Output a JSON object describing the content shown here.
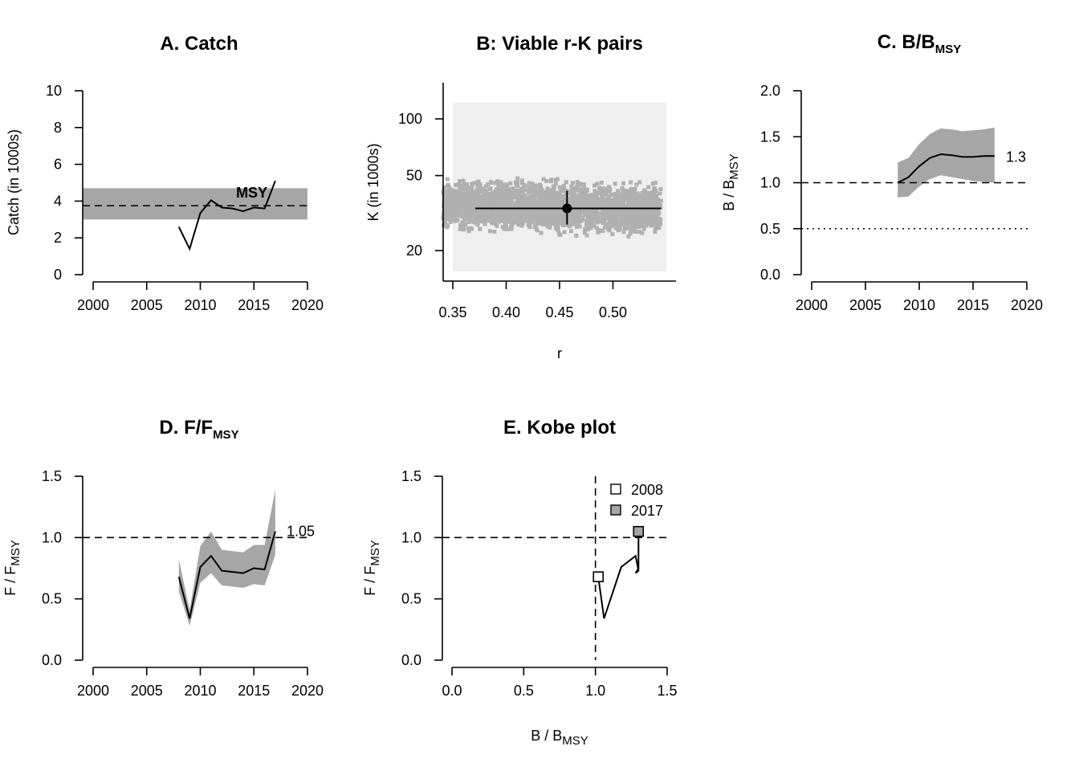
{
  "colors": {
    "band": "#a6a6a6",
    "cloud": "#b0b0b0",
    "panel_bg": "#efefef",
    "line": "#000000",
    "marker_2017": "#a6a6a6",
    "marker_2008": "#ffffff"
  },
  "chart_data": [
    {
      "id": "A",
      "type": "line",
      "title": "A. Catch",
      "xlabel": "",
      "ylabel": "Catch (in 1000s)",
      "xlim": [
        2000,
        2020
      ],
      "ylim": [
        0,
        10
      ],
      "xticks": [
        "2000",
        "2005",
        "2010",
        "2015",
        "2020"
      ],
      "yticks": [
        "0",
        "2",
        "4",
        "6",
        "8",
        "10"
      ],
      "msy": {
        "label": "MSY",
        "value": 3.75,
        "lower": 3.0,
        "upper": 4.7
      },
      "x": [
        2008,
        2009,
        2010,
        2011,
        2012,
        2013,
        2014,
        2015,
        2016,
        2017
      ],
      "y": [
        2.6,
        1.4,
        3.35,
        4.05,
        3.65,
        3.6,
        3.45,
        3.65,
        3.6,
        5.1
      ]
    },
    {
      "id": "B",
      "type": "scatter",
      "title": "B: Viable r-K pairs",
      "xlabel": "r",
      "ylabel": "K (in 1000s)",
      "xlim": [
        0.34,
        0.545
      ],
      "ylim_log": [
        15,
        130
      ],
      "xticks": [
        "0.35",
        "0.40",
        "0.45",
        "0.50"
      ],
      "yticks": [
        "20",
        "50",
        "100"
      ],
      "prior_range": {
        "r": [
          0.35,
          0.55
        ],
        "K": [
          15.5,
          122
        ]
      },
      "cloud": {
        "K_center": 34,
        "K_spread": 1.2
      },
      "estimate": {
        "r": 0.457,
        "K": 33.5,
        "r_ci": [
          0.371,
          0.545
        ],
        "K_ci": [
          27.5,
          41.5
        ]
      }
    },
    {
      "id": "C",
      "type": "line",
      "title_main": "C. B/B",
      "title_sub": "MSY",
      "xlabel": "",
      "ylabel_main": "B / B",
      "ylabel_sub": "MSY",
      "xlim": [
        2000,
        2020
      ],
      "ylim": [
        0,
        2
      ],
      "xticks": [
        "2000",
        "2005",
        "2010",
        "2015",
        "2020"
      ],
      "yticks": [
        "0.0",
        "0.5",
        "1.0",
        "1.5",
        "2.0"
      ],
      "end_label": "1.3",
      "ref_dashed": 1.0,
      "ref_dotted": 0.5,
      "x": [
        2008,
        2009,
        2010,
        2011,
        2012,
        2013,
        2014,
        2015,
        2016,
        2017
      ],
      "y": [
        1.0,
        1.06,
        1.18,
        1.27,
        1.31,
        1.3,
        1.28,
        1.28,
        1.29,
        1.29
      ],
      "lower": [
        0.84,
        0.85,
        0.96,
        1.04,
        1.08,
        1.06,
        1.04,
        1.02,
        1.01,
        1.0
      ],
      "upper": [
        1.22,
        1.27,
        1.42,
        1.53,
        1.59,
        1.58,
        1.56,
        1.57,
        1.58,
        1.6
      ]
    },
    {
      "id": "D",
      "type": "line",
      "title_main": "D. F/F",
      "title_sub": "MSY",
      "xlabel": "",
      "ylabel_main": "F / F",
      "ylabel_sub": "MSY",
      "xlim": [
        2000,
        2020
      ],
      "ylim": [
        0,
        1.5
      ],
      "xticks": [
        "2000",
        "2005",
        "2010",
        "2015",
        "2020"
      ],
      "yticks": [
        "0.0",
        "0.5",
        "1.0",
        "1.5"
      ],
      "end_label": "1.05",
      "ref_dashed": 1.0,
      "x": [
        2008,
        2009,
        2010,
        2011,
        2012,
        2013,
        2014,
        2015,
        2016,
        2017
      ],
      "y": [
        0.68,
        0.34,
        0.76,
        0.85,
        0.73,
        0.72,
        0.71,
        0.75,
        0.74,
        1.05
      ],
      "lower": [
        0.56,
        0.28,
        0.63,
        0.71,
        0.61,
        0.6,
        0.59,
        0.62,
        0.61,
        0.86
      ],
      "upper": [
        0.82,
        0.41,
        0.93,
        1.05,
        0.9,
        0.89,
        0.88,
        0.94,
        0.94,
        1.39
      ]
    },
    {
      "id": "E",
      "type": "line",
      "title": "E. Kobe plot",
      "xlabel_main": "B / B",
      "xlabel_sub": "MSY",
      "ylabel_main": "F / F",
      "ylabel_sub": "MSY",
      "xlim": [
        0,
        1.5
      ],
      "ylim": [
        0,
        1.5
      ],
      "xticks": [
        "0.0",
        "0.5",
        "1.0",
        "1.5"
      ],
      "yticks": [
        "0.0",
        "0.5",
        "1.0",
        "1.5"
      ],
      "ref_v": 1.0,
      "ref_h": 1.0,
      "x": [
        1.02,
        1.06,
        1.18,
        1.28,
        1.3,
        1.29,
        1.28,
        1.3,
        1.3,
        1.3
      ],
      "y": [
        0.68,
        0.34,
        0.76,
        0.85,
        0.73,
        0.72,
        0.71,
        0.75,
        0.74,
        1.05
      ],
      "legend": [
        {
          "label": "2008",
          "fill": "white"
        },
        {
          "label": "2017",
          "fill": "grey"
        }
      ]
    }
  ]
}
